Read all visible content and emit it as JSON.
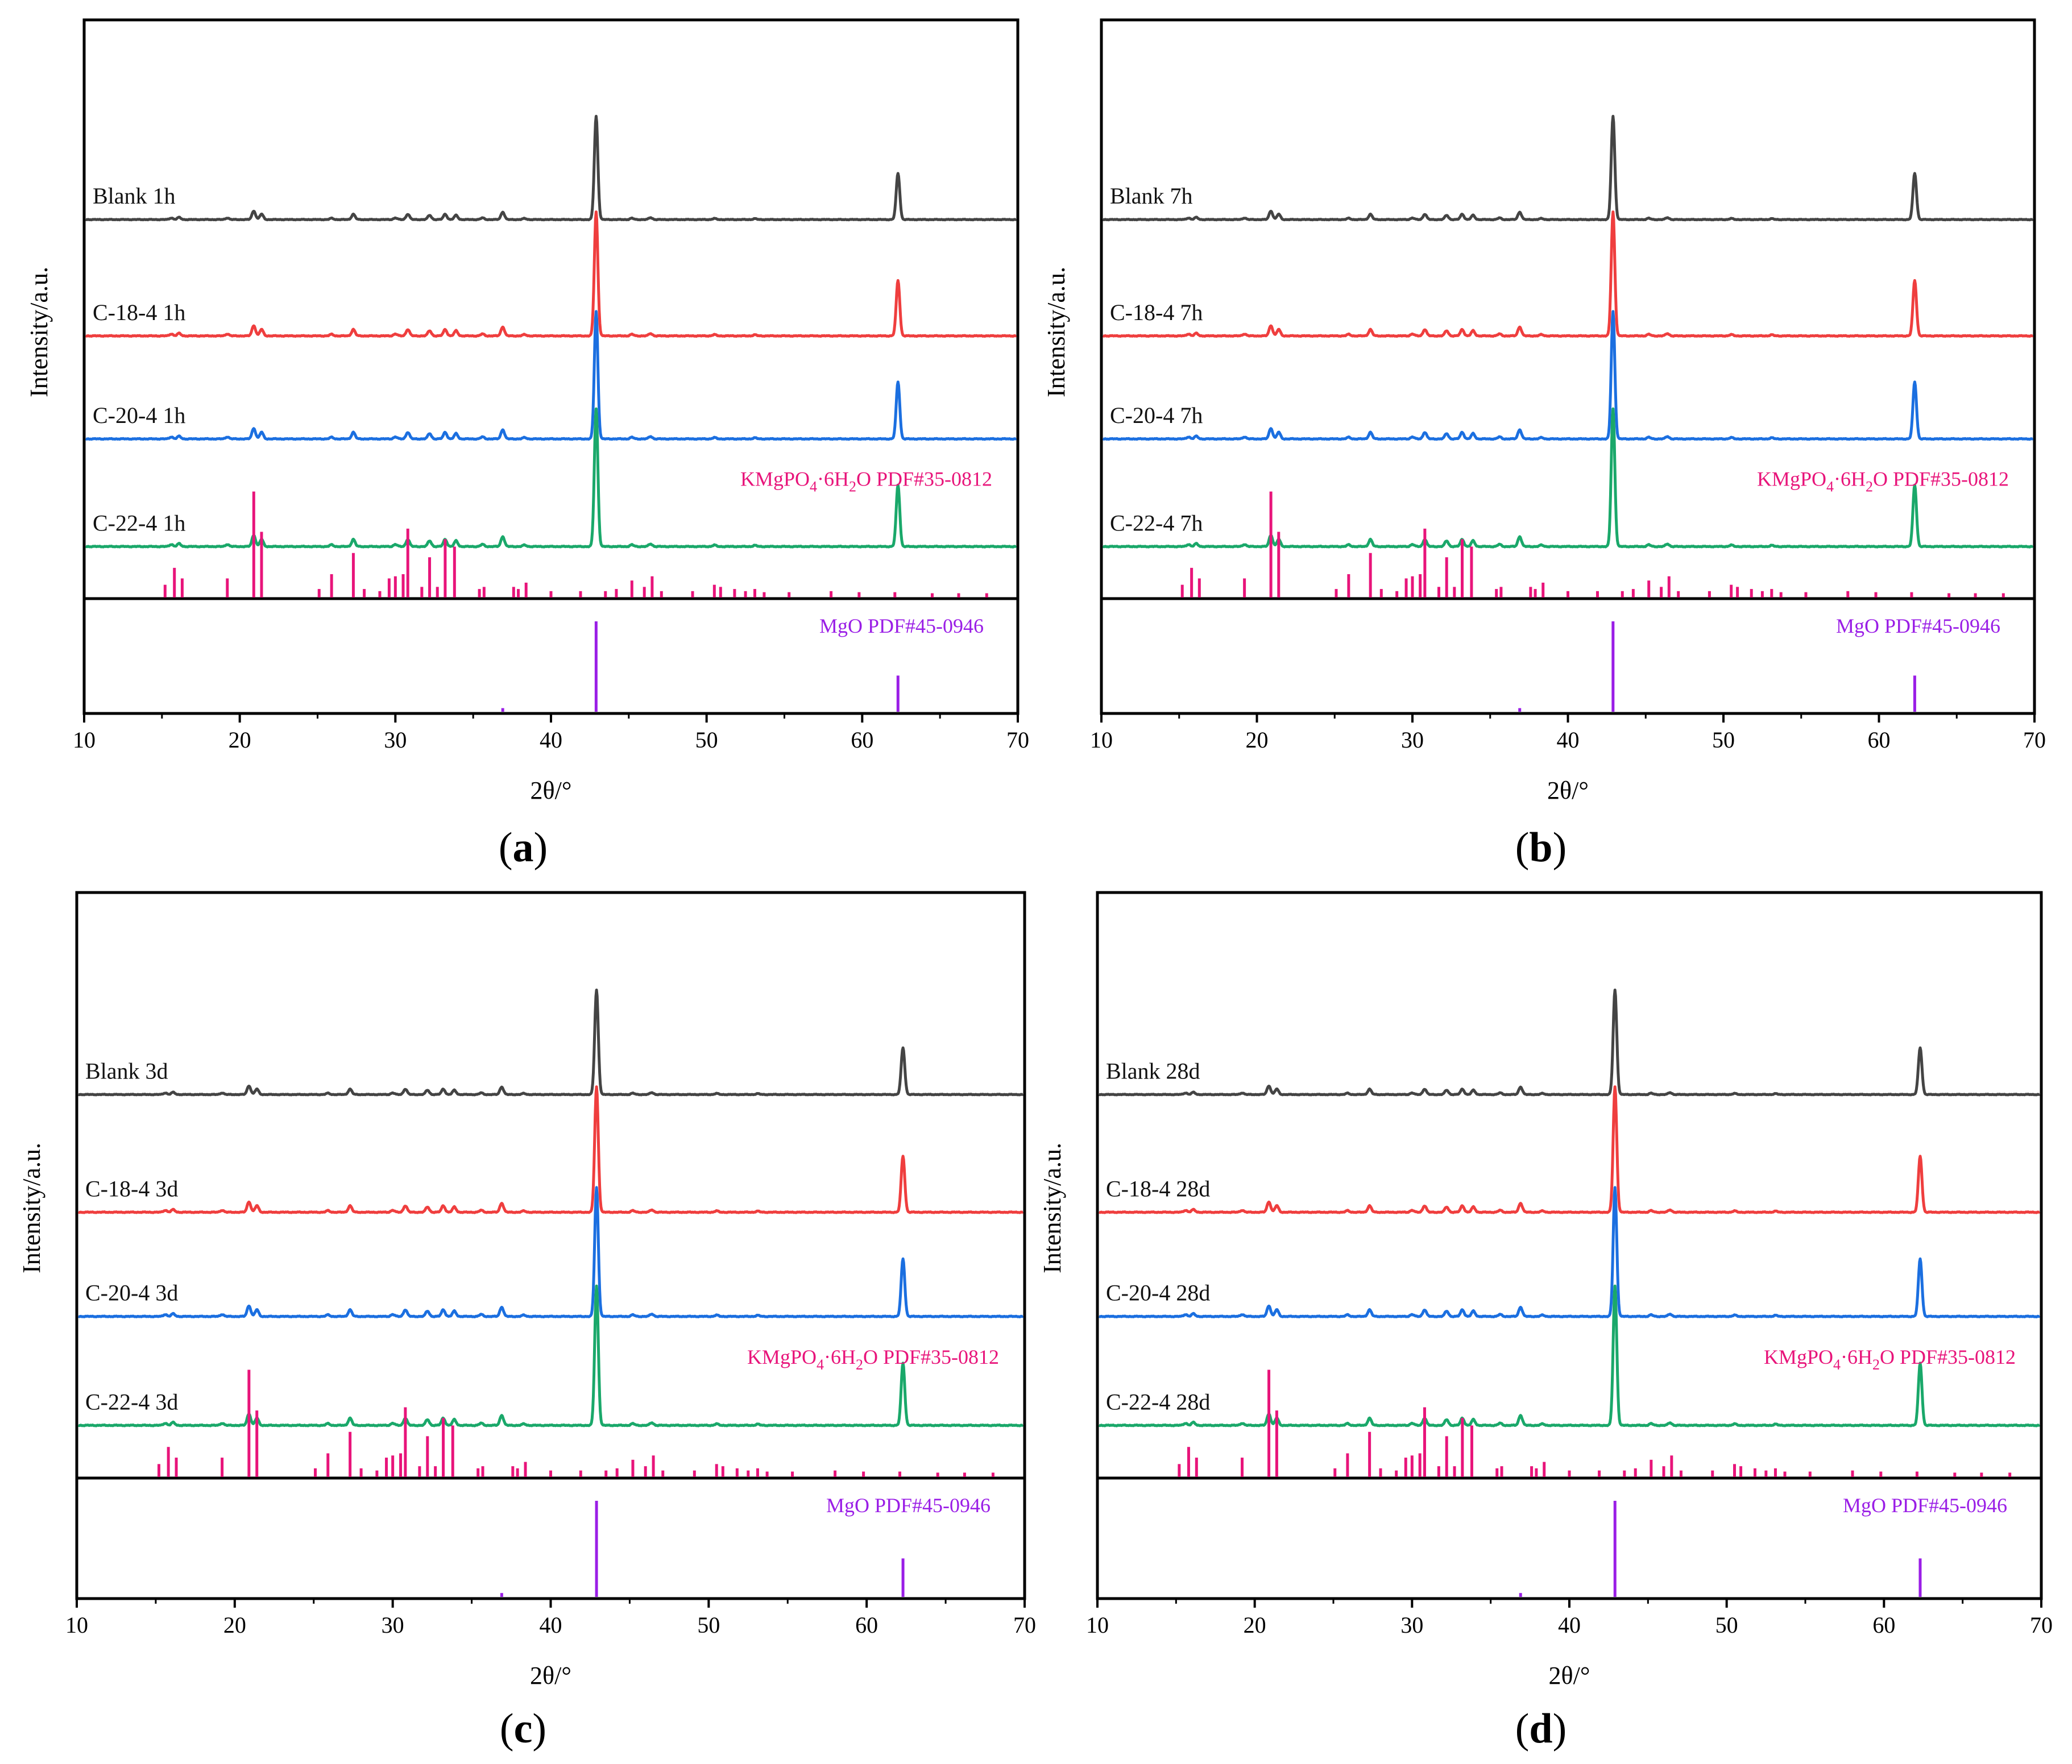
{
  "figure": {
    "colors": {
      "C-22-4": "#1aa86a",
      "C-20-4": "#1b6fe0",
      "C-18-4": "#ef3e3e",
      "Blank": "#444444",
      "kmgpo4": "#e8147a",
      "mgo": "#9a1ee6"
    },
    "reference_labels": {
      "kmgpo4": {
        "prefix": "KMgPO",
        "sub1": "4",
        "middle": "·6H",
        "sub2": "2",
        "suffix": "O PDF#35-0812"
      },
      "mgo": "MgO PDF#45-0946"
    }
  },
  "chart_data": [
    {
      "type": "line",
      "panel": "a",
      "caption": "a",
      "xlabel": "2θ/°",
      "ylabel": "Intensity/a.u.",
      "xlim": [
        10,
        70
      ],
      "xticks": [
        10,
        20,
        30,
        40,
        50,
        60,
        70
      ],
      "series": [
        {
          "name": "C-22-4",
          "label": "C-22-4 1h"
        },
        {
          "name": "C-20-4",
          "label": "C-20-4 1h"
        },
        {
          "name": "C-18-4",
          "label": "C-18-4 1h"
        },
        {
          "name": "Blank",
          "label": "Blank 1h"
        }
      ]
    },
    {
      "type": "line",
      "panel": "b",
      "caption": "b",
      "xlabel": "2θ/°",
      "ylabel": "Intensity/a.u.",
      "xlim": [
        10,
        70
      ],
      "xticks": [
        10,
        20,
        30,
        40,
        50,
        60,
        70
      ],
      "series": [
        {
          "name": "C-22-4",
          "label": "C-22-4 7h"
        },
        {
          "name": "C-20-4",
          "label": "C-20-4 7h"
        },
        {
          "name": "C-18-4",
          "label": "C-18-4 7h"
        },
        {
          "name": "Blank",
          "label": "Blank 7h"
        }
      ]
    },
    {
      "type": "line",
      "panel": "c",
      "caption": "c",
      "xlabel": "2θ/°",
      "ylabel": "Intensity/a.u.",
      "xlim": [
        10,
        70
      ],
      "xticks": [
        10,
        20,
        30,
        40,
        50,
        60,
        70
      ],
      "series": [
        {
          "name": "C-22-4",
          "label": "C-22-4 3d"
        },
        {
          "name": "C-20-4",
          "label": "C-20-4 3d"
        },
        {
          "name": "C-18-4",
          "label": "C-18-4 3d"
        },
        {
          "name": "Blank",
          "label": "Blank 3d"
        }
      ]
    },
    {
      "type": "line",
      "panel": "d",
      "caption": "d",
      "xlabel": "2θ/°",
      "ylabel": "Intensity/a.u.",
      "xlim": [
        10,
        70
      ],
      "xticks": [
        10,
        20,
        30,
        40,
        50,
        60,
        70
      ],
      "series": [
        {
          "name": "C-22-4",
          "label": "C-22-4 28d"
        },
        {
          "name": "C-20-4",
          "label": "C-20-4 28d"
        },
        {
          "name": "C-18-4",
          "label": "C-18-4 28d"
        },
        {
          "name": "Blank",
          "label": "Blank 28d"
        }
      ]
    }
  ],
  "peaks": {
    "sample": [
      [
        20.9,
        0.08
      ],
      [
        21.4,
        0.05
      ],
      [
        16.1,
        0.02
      ],
      [
        15.6,
        0.015
      ],
      [
        19.2,
        0.015
      ],
      [
        25.9,
        0.012
      ],
      [
        27.3,
        0.05
      ],
      [
        30.0,
        0.015
      ],
      [
        30.8,
        0.05
      ],
      [
        32.2,
        0.04
      ],
      [
        33.2,
        0.05
      ],
      [
        33.9,
        0.04
      ],
      [
        35.6,
        0.015
      ],
      [
        36.9,
        0.07
      ],
      [
        38.3,
        0.01
      ],
      [
        42.9,
        0.96
      ],
      [
        45.2,
        0.012
      ],
      [
        46.4,
        0.018
      ],
      [
        50.5,
        0.01
      ],
      [
        53.1,
        0.008
      ],
      [
        62.3,
        0.43
      ]
    ],
    "kmgpo4": [
      [
        15.2,
        0.12
      ],
      [
        15.8,
        0.28
      ],
      [
        16.3,
        0.18
      ],
      [
        19.2,
        0.18
      ],
      [
        20.9,
        1.0
      ],
      [
        21.4,
        0.62
      ],
      [
        25.1,
        0.08
      ],
      [
        25.9,
        0.22
      ],
      [
        27.3,
        0.42
      ],
      [
        28.0,
        0.08
      ],
      [
        29.0,
        0.06
      ],
      [
        29.6,
        0.18
      ],
      [
        30.0,
        0.2
      ],
      [
        30.5,
        0.22
      ],
      [
        30.8,
        0.65
      ],
      [
        31.7,
        0.1
      ],
      [
        32.2,
        0.38
      ],
      [
        32.7,
        0.1
      ],
      [
        33.2,
        0.55
      ],
      [
        33.8,
        0.48
      ],
      [
        35.4,
        0.08
      ],
      [
        35.7,
        0.1
      ],
      [
        37.6,
        0.1
      ],
      [
        37.9,
        0.08
      ],
      [
        38.4,
        0.14
      ],
      [
        40.0,
        0.06
      ],
      [
        41.9,
        0.06
      ],
      [
        43.5,
        0.06
      ],
      [
        44.2,
        0.08
      ],
      [
        45.2,
        0.16
      ],
      [
        46.0,
        0.1
      ],
      [
        46.5,
        0.2
      ],
      [
        47.1,
        0.06
      ],
      [
        49.1,
        0.06
      ],
      [
        50.5,
        0.12
      ],
      [
        50.9,
        0.1
      ],
      [
        51.8,
        0.08
      ],
      [
        52.5,
        0.06
      ],
      [
        53.1,
        0.08
      ],
      [
        53.7,
        0.05
      ],
      [
        55.3,
        0.05
      ],
      [
        58.0,
        0.06
      ],
      [
        59.8,
        0.05
      ],
      [
        62.1,
        0.05
      ],
      [
        64.5,
        0.04
      ],
      [
        66.2,
        0.04
      ],
      [
        68.0,
        0.04
      ]
    ],
    "mgo": [
      [
        36.9,
        0.04
      ],
      [
        42.9,
        1.0
      ],
      [
        62.3,
        0.4
      ]
    ]
  }
}
